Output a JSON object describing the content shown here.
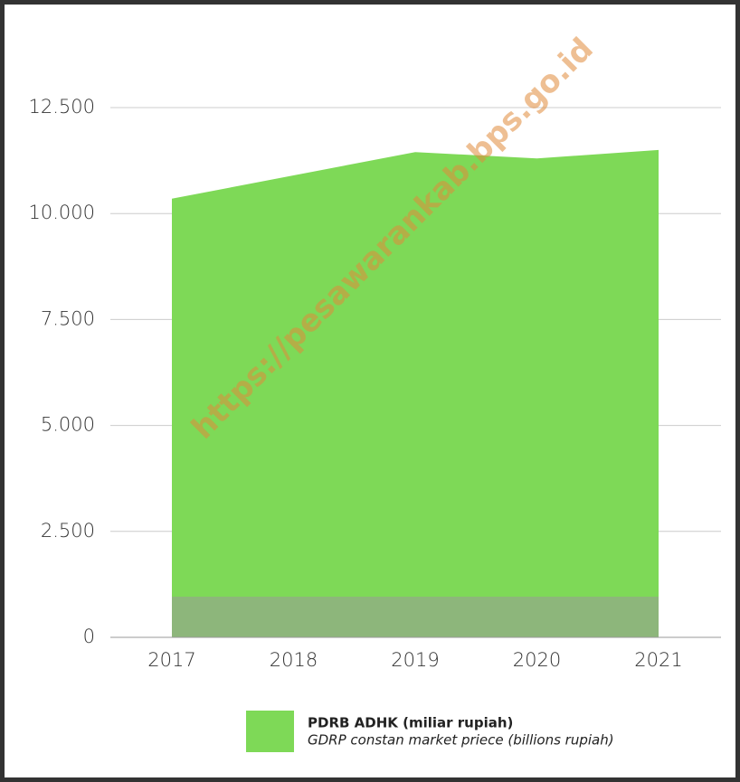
{
  "chart_data": {
    "type": "area",
    "watermark": "https://pesawarankab.bps.go.id",
    "categories": [
      "2017",
      "2018",
      "2019",
      "2020",
      "2021"
    ],
    "series": [
      {
        "name": "PDRB ADHK (miliar rupiah)",
        "color": "#7ed957",
        "values": [
          10350,
          10900,
          11450,
          11300,
          11500
        ]
      }
    ],
    "legend_subtitle": "GDRP constan market priece (billions rupiah)",
    "ylim": [
      0,
      12500
    ],
    "yticks": [
      0,
      {
        "value": 2500,
        "label": "2.500"
      },
      {
        "value": 5000,
        "label": "5.000"
      },
      {
        "value": 7500,
        "label": "7.500"
      },
      {
        "value": 10000,
        "label": "10.000"
      },
      {
        "value": 12500,
        "label": "12.500"
      }
    ],
    "grid": true
  }
}
